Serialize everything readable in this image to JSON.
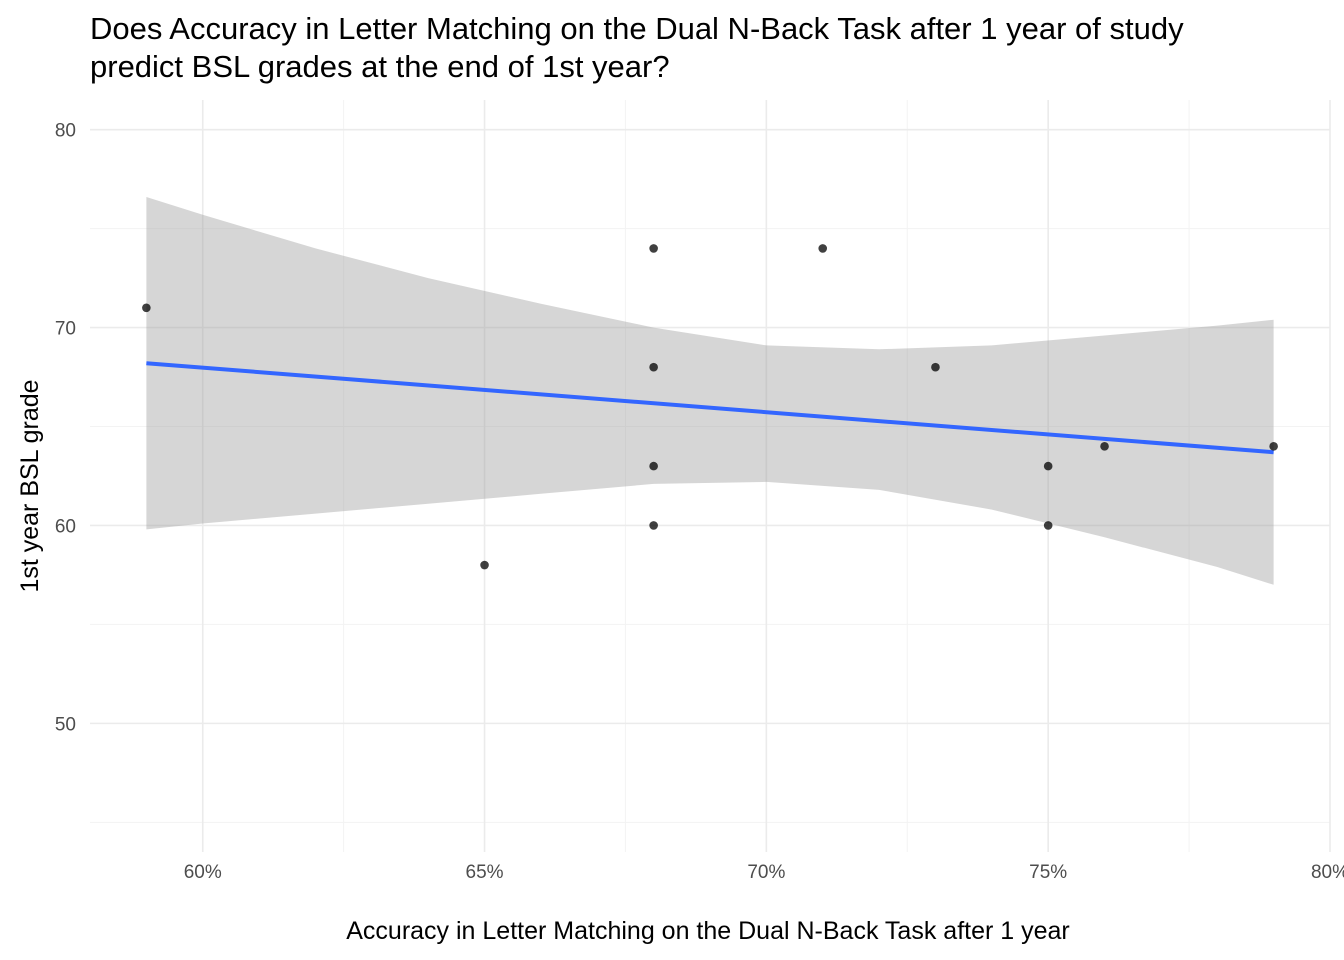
{
  "chart_data": {
    "type": "scatter",
    "title_lines": [
      "Does Accuracy in Letter Matching on the Dual N-Back Task after 1 year of study",
      "predict BSL grades at the end of 1st year?"
    ],
    "xlabel": "Accuracy in Letter Matching on the Dual N-Back Task after 1 year",
    "ylabel": "1st year BSL grade",
    "xlim": [
      0.58,
      0.8
    ],
    "ylim": [
      43.5,
      81.5
    ],
    "x_ticks": [
      0.6,
      0.65,
      0.7,
      0.75,
      0.8
    ],
    "x_tick_labels": [
      "60%",
      "65%",
      "70%",
      "75%",
      "80%"
    ],
    "y_ticks": [
      50,
      60,
      70,
      80
    ],
    "y_tick_labels": [
      "50",
      "60",
      "70",
      "80"
    ],
    "grid": true,
    "points": [
      {
        "x": 0.59,
        "y": 71
      },
      {
        "x": 0.65,
        "y": 58
      },
      {
        "x": 0.68,
        "y": 74
      },
      {
        "x": 0.68,
        "y": 68
      },
      {
        "x": 0.68,
        "y": 63
      },
      {
        "x": 0.68,
        "y": 60
      },
      {
        "x": 0.71,
        "y": 74
      },
      {
        "x": 0.73,
        "y": 68
      },
      {
        "x": 0.75,
        "y": 63
      },
      {
        "x": 0.75,
        "y": 60
      },
      {
        "x": 0.76,
        "y": 64
      },
      {
        "x": 0.79,
        "y": 64
      }
    ],
    "fit_line": {
      "x": [
        0.59,
        0.79
      ],
      "y": [
        68.2,
        63.7
      ],
      "color": "#3366FF"
    },
    "confidence_band": {
      "color": "#999999",
      "x": [
        0.59,
        0.6,
        0.62,
        0.64,
        0.66,
        0.68,
        0.7,
        0.72,
        0.74,
        0.76,
        0.78,
        0.79
      ],
      "upper": [
        76.6,
        75.7,
        74.0,
        72.5,
        71.2,
        70.0,
        69.1,
        68.9,
        69.1,
        69.6,
        70.1,
        70.4
      ],
      "lower": [
        59.8,
        60.1,
        60.6,
        61.1,
        61.6,
        62.1,
        62.2,
        61.8,
        60.8,
        59.4,
        57.9,
        57.0
      ]
    },
    "point_color": "#000000"
  }
}
